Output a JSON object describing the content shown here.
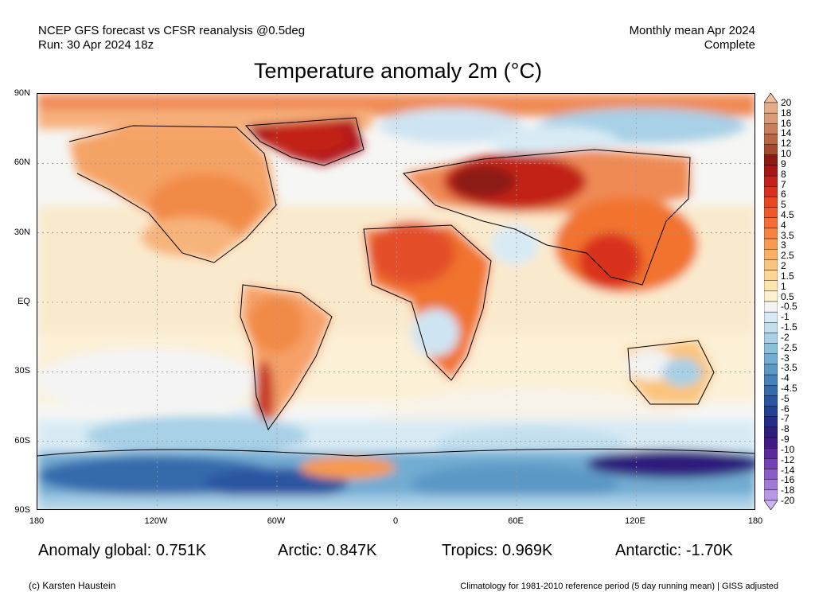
{
  "header": {
    "line1": "NCEP GFS forecast vs CFSR reanalysis @0.5deg",
    "line2": "Run: 30 Apr 2024 18z",
    "right1": "Monthly mean Apr 2024",
    "right2": "Complete"
  },
  "title": "Temperature anomaly 2m (°C)",
  "lat_labels": [
    "90N",
    "60N",
    "30N",
    "EQ",
    "30S",
    "60S",
    "90S"
  ],
  "lon_labels": [
    "180",
    "120W",
    "60W",
    "0",
    "60E",
    "120E",
    "180"
  ],
  "colorbar": {
    "labels": [
      "20",
      "18",
      "16",
      "14",
      "12",
      "10",
      "9",
      "8",
      "7",
      "6",
      "5",
      "4.5",
      "4",
      "3.5",
      "3",
      "2.5",
      "2",
      "1.5",
      "1",
      "0.5",
      "-0.5",
      "-1",
      "-1.5",
      "-2",
      "-2.5",
      "-3",
      "-3.5",
      "-4",
      "-4.5",
      "-5",
      "-6",
      "-7",
      "-8",
      "-9",
      "-10",
      "-12",
      "-14",
      "-16",
      "-18",
      "-20"
    ],
    "colors": [
      "#eebf9c",
      "#e4ad8a",
      "#d99b78",
      "#c97e5c",
      "#b96645",
      "#a34b30",
      "#8c1a12",
      "#a51616",
      "#c22219",
      "#d9311e",
      "#e8471f",
      "#f0582a",
      "#f46d34",
      "#f68440",
      "#f89a4f",
      "#fab064",
      "#fbc47c",
      "#fcd794",
      "#fde6ad",
      "#fdf2cf",
      "#f3f3f3",
      "#d8ebf5",
      "#c3dfee",
      "#a8d0e6",
      "#8cbfdc",
      "#72acd2",
      "#5b98c6",
      "#4782b9",
      "#366bab",
      "#2a55a0",
      "#253f93",
      "#262a88",
      "#2f1d7c",
      "#421a86",
      "#5a2a9c",
      "#7442b4",
      "#8b5ec6",
      "#a27ad6",
      "#b997e4",
      "#cfb5ef"
    ]
  },
  "stats": [
    {
      "label": "Anomaly global:",
      "value": "0.751K"
    },
    {
      "label": "Arctic:",
      "value": "0.847K"
    },
    {
      "label": "Tropics:",
      "value": "0.969K"
    },
    {
      "label": "Antarctic:",
      "value": "-1.70K"
    }
  ],
  "footer": {
    "left": "(c) Karsten Haustein",
    "right": "Climatology for 1981-2010 reference period (5 day running mean) | GISS adjusted"
  }
}
